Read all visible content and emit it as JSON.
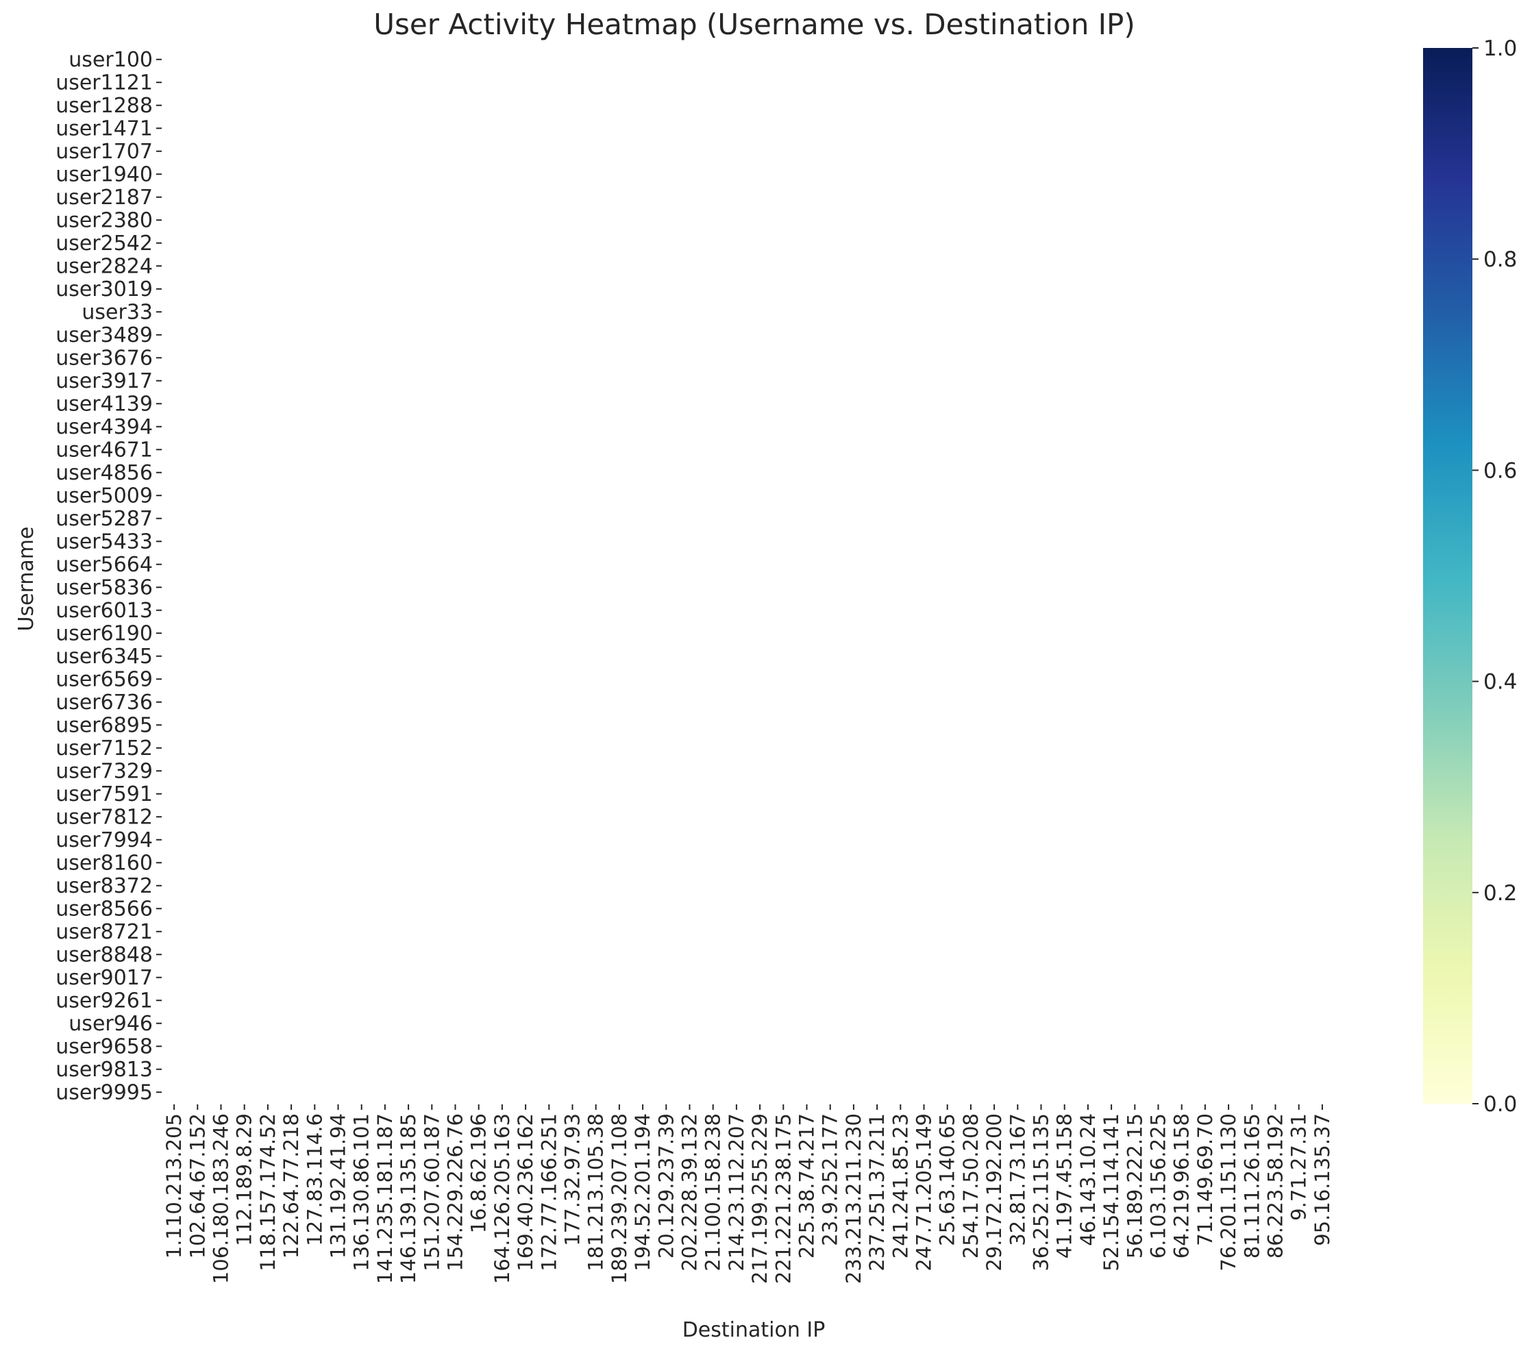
{
  "chart_data": {
    "type": "heatmap",
    "title": "User Activity Heatmap (Username vs. Destination IP)",
    "xlabel": "Destination IP",
    "ylabel": "Username",
    "x_tick_labels": [
      "1.110.213.205",
      "102.64.67.152",
      "106.180.183.246",
      "112.189.8.29",
      "118.157.174.52",
      "122.64.77.218",
      "127.83.114.6",
      "131.192.41.94",
      "136.130.86.101",
      "141.235.181.187",
      "146.139.135.185",
      "151.207.60.187",
      "154.229.226.76",
      "16.8.62.196",
      "164.126.205.163",
      "169.40.236.162",
      "172.77.166.251",
      "177.32.97.93",
      "181.213.105.38",
      "189.239.207.108",
      "194.52.201.194",
      "20.129.237.39",
      "202.228.39.132",
      "21.100.158.238",
      "214.23.112.207",
      "217.199.255.229",
      "221.221.238.175",
      "225.38.74.217",
      "23.9.252.177",
      "233.213.211.230",
      "237.251.37.211",
      "241.241.85.23",
      "247.71.205.149",
      "25.63.140.65",
      "254.17.50.208",
      "29.172.192.200",
      "32.81.73.167",
      "36.252.115.135",
      "41.197.45.158",
      "46.143.10.24",
      "52.154.114.141",
      "56.189.222.15",
      "6.103.156.225",
      "64.219.96.158",
      "71.149.69.70",
      "76.201.151.130",
      "81.111.26.165",
      "86.223.58.192",
      "9.71.27.31",
      "95.16.135.37"
    ],
    "y_tick_labels": [
      "user100",
      "user1121",
      "user1288",
      "user1471",
      "user1707",
      "user1940",
      "user2187",
      "user2380",
      "user2542",
      "user2824",
      "user3019",
      "user33",
      "user3489",
      "user3676",
      "user3917",
      "user4139",
      "user4394",
      "user4671",
      "user4856",
      "user5009",
      "user5287",
      "user5433",
      "user5664",
      "user5836",
      "user6013",
      "user6190",
      "user6345",
      "user6569",
      "user6736",
      "user6895",
      "user7152",
      "user7329",
      "user7591",
      "user7812",
      "user7994",
      "user8160",
      "user8372",
      "user8566",
      "user8721",
      "user8848",
      "user9017",
      "user9261",
      "user946",
      "user9658",
      "user9813",
      "user9995"
    ],
    "values_note_cells_empty": true,
    "colorbar": {
      "colormap": "YlGnBu",
      "range": [
        0.0,
        1.0
      ],
      "ticks": [
        "0.0",
        "0.2",
        "0.4",
        "0.6",
        "0.8",
        "1.0"
      ],
      "stops": [
        "#ffffd9",
        "#edf8b1",
        "#c7e9b4",
        "#7fcdbb",
        "#41b6c4",
        "#1d91c0",
        "#225ea8",
        "#253494",
        "#081d58"
      ]
    },
    "grid": false,
    "legend": "colorbar-right"
  }
}
